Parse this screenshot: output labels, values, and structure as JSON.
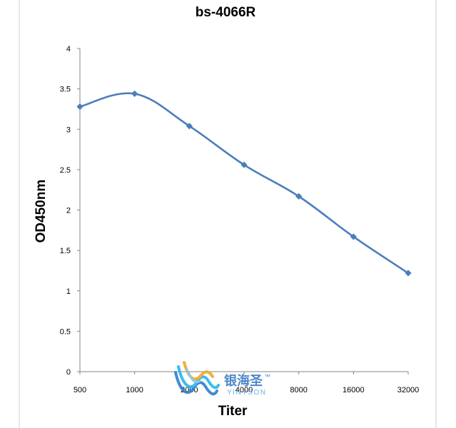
{
  "chart_data": {
    "type": "line",
    "title": "bs-4066R",
    "xlabel": "Titer",
    "ylabel": "OD450nm",
    "categories": [
      "500",
      "1000",
      "2000",
      "4000",
      "8000",
      "16000",
      "32000"
    ],
    "series": [
      {
        "values": [
          3.28,
          3.44,
          3.04,
          2.56,
          2.17,
          1.67,
          1.22
        ]
      }
    ],
    "ylim": [
      0,
      4
    ],
    "yticks": [
      "0",
      "0.5",
      "1",
      "1.5",
      "2",
      "2.5",
      "3",
      "3.5",
      "4"
    ],
    "grid": false,
    "legend": "none",
    "line_color": "#4a7ebb",
    "smooth": true
  },
  "watermark": {
    "name_cn": "银海圣",
    "trademark": "™",
    "name_en": "YINYSON",
    "colors": {
      "blue": "#2f7fd0",
      "cyan": "#29b6e8",
      "orange": "#f5a623",
      "text": "#3a7cc4"
    }
  }
}
